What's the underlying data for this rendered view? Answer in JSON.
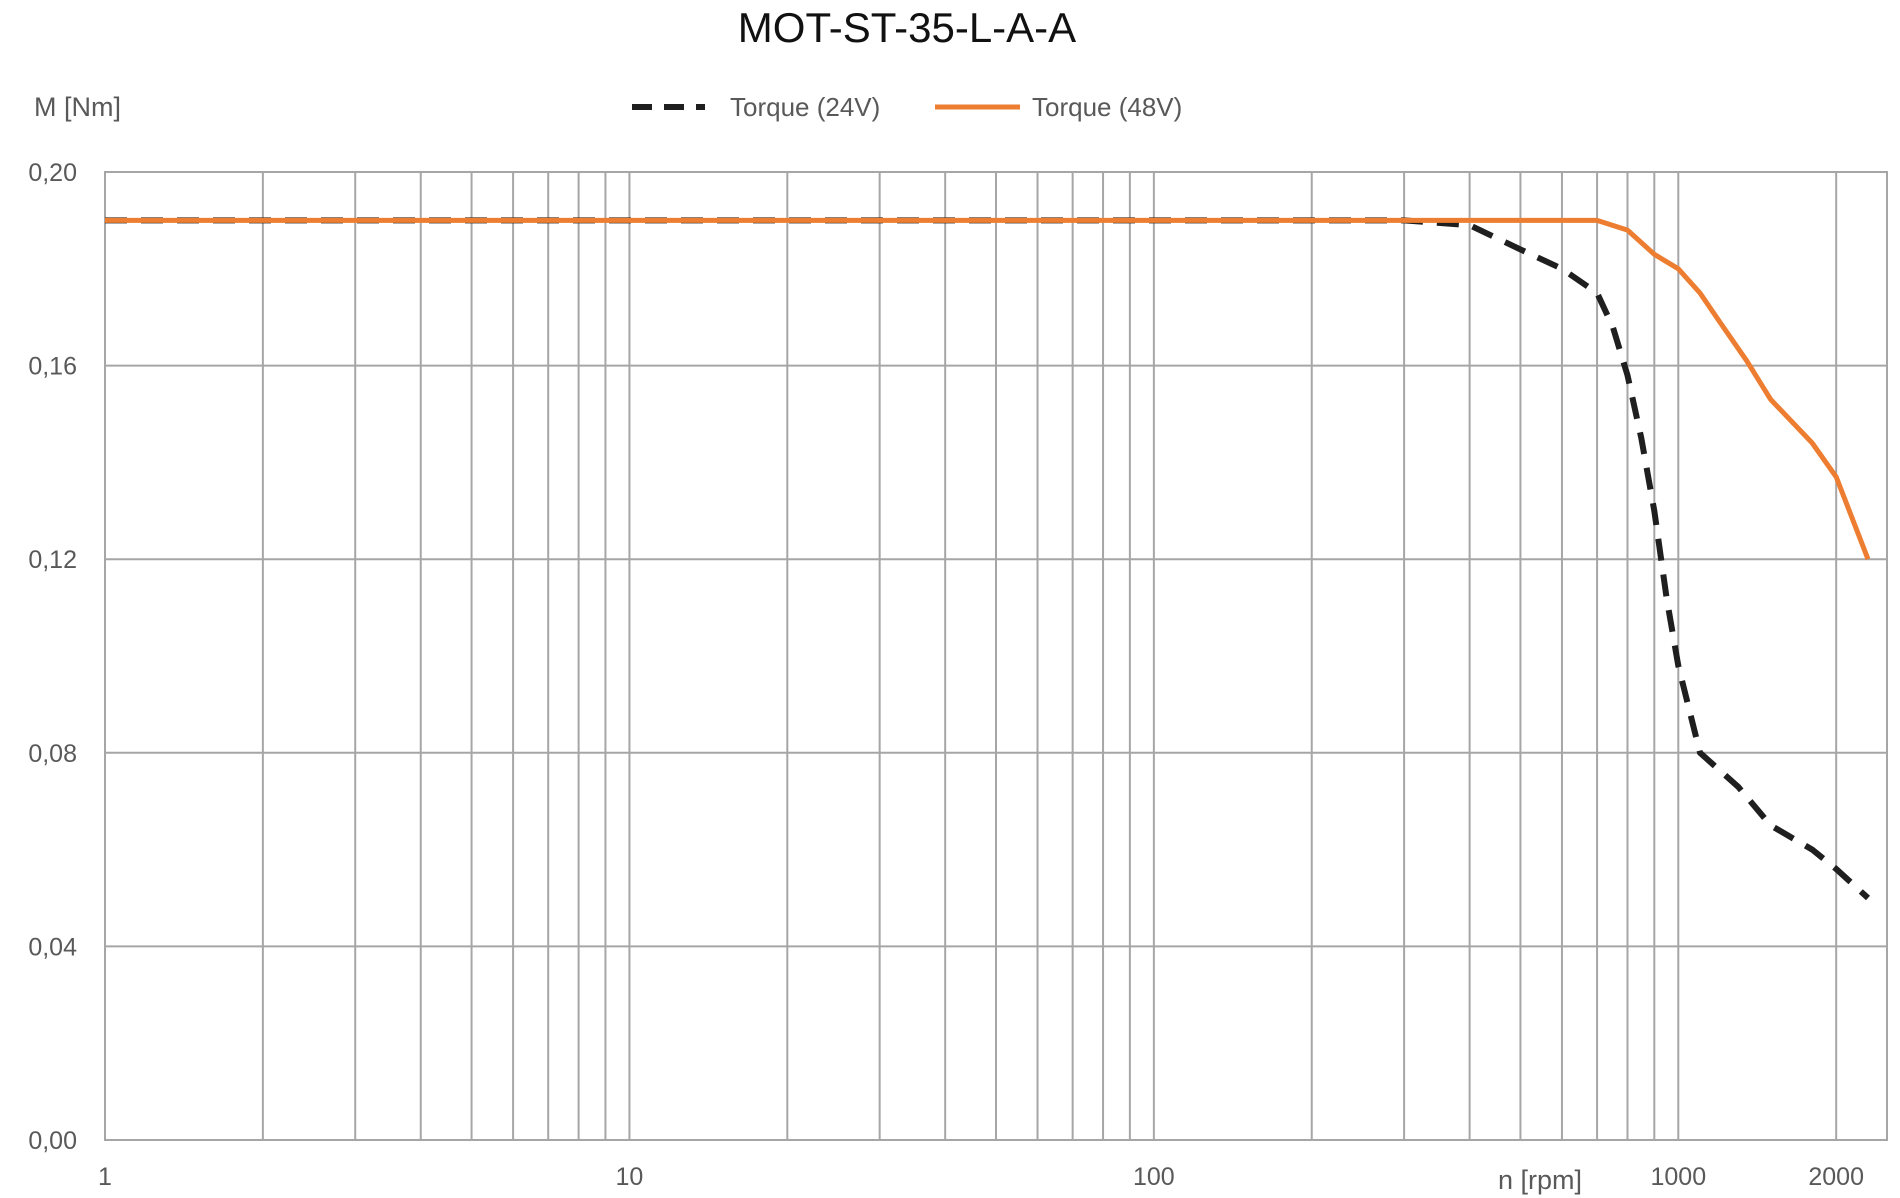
{
  "chart_data": {
    "type": "line",
    "title": "MOT-ST-35-L-A-A",
    "xlabel": "n [rpm]",
    "ylabel": "M [Nm]",
    "xscale": "log",
    "xlim": [
      1,
      2500
    ],
    "ylim": [
      0,
      0.2
    ],
    "grid": true,
    "legend_position": "top-center",
    "x_tick_labels": [
      {
        "value": 1,
        "label": "1"
      },
      {
        "value": 10,
        "label": "10"
      },
      {
        "value": 100,
        "label": "100"
      },
      {
        "value": 1000,
        "label": "1000"
      },
      {
        "value": 2000,
        "label": "2000"
      }
    ],
    "y_tick_labels": [
      {
        "value": 0.0,
        "label": "0,00"
      },
      {
        "value": 0.04,
        "label": "0,04"
      },
      {
        "value": 0.08,
        "label": "0,08"
      },
      {
        "value": 0.12,
        "label": "0,12"
      },
      {
        "value": 0.16,
        "label": "0,16"
      },
      {
        "value": 0.2,
        "label": "0,20"
      }
    ],
    "series": [
      {
        "name": "Torque (24V)",
        "color": "#1f1f1f",
        "style": "dashed",
        "x": [
          1,
          300,
          400,
          500,
          600,
          700,
          750,
          800,
          850,
          900,
          950,
          1000,
          1100,
          1300,
          1500,
          1800,
          2000,
          2300
        ],
        "y": [
          0.19,
          0.19,
          0.189,
          0.184,
          0.18,
          0.175,
          0.168,
          0.158,
          0.145,
          0.13,
          0.112,
          0.098,
          0.08,
          0.073,
          0.065,
          0.06,
          0.056,
          0.05
        ]
      },
      {
        "name": "Torque (48V)",
        "color": "#ed7d31",
        "style": "solid",
        "x": [
          1,
          400,
          700,
          800,
          900,
          1000,
          1100,
          1200,
          1350,
          1500,
          1800,
          2000,
          2300
        ],
        "y": [
          0.19,
          0.19,
          0.19,
          0.188,
          0.183,
          0.18,
          0.175,
          0.169,
          0.161,
          0.153,
          0.144,
          0.137,
          0.12
        ]
      }
    ]
  }
}
